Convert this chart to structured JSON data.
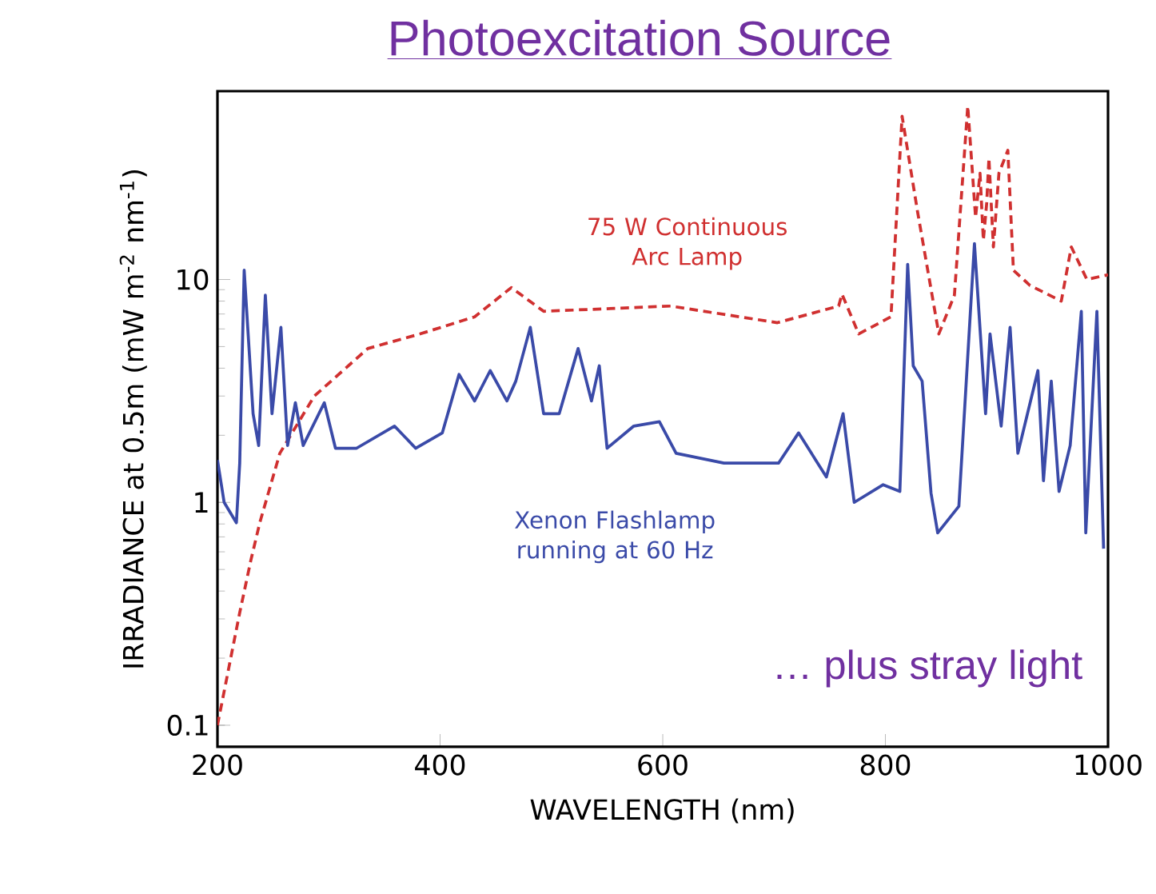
{
  "chart_data": {
    "type": "line",
    "title": "Photoexcitation Source",
    "xlabel": "WAVELENGTH (nm)",
    "ylabel": "IRRADIANCE at 0.5m (mW m$^{-2}$ nm$^{-1}$)",
    "log": "y",
    "grid": false,
    "marker": "none",
    "xlim": [
      200,
      1000
    ],
    "ylim": [
      0.08,
      70
    ],
    "xticks": [
      200,
      400,
      600,
      800,
      1000
    ],
    "yticks": [
      0.1,
      1,
      10
    ],
    "annotations": [
      "… plus stray light"
    ],
    "series": [
      {
        "name": "75 W Continuous Arc Lamp",
        "color": "#d03030",
        "line_style": "dashed",
        "x": [
          200,
          220,
          230,
          238,
          256,
          287,
          335,
          382,
          431,
          464,
          493,
          607,
          703,
          758,
          761,
          776,
          805,
          815,
          829,
          848,
          862,
          874,
          881,
          885,
          888,
          891,
          893,
          897,
          902,
          910,
          915,
          930,
          958,
          967,
          981,
          1000
        ],
        "values": [
          0.1,
          0.32,
          0.55,
          0.81,
          1.66,
          3.0,
          4.9,
          5.7,
          6.8,
          9.2,
          7.2,
          7.6,
          6.4,
          7.6,
          8.6,
          5.7,
          6.8,
          54,
          20,
          5.7,
          8.5,
          60,
          19,
          30,
          15,
          22,
          35,
          14,
          30,
          38,
          11,
          9.4,
          8,
          14,
          10,
          10.5
        ]
      },
      {
        "name": "Xenon Flashlamp running at 60 Hz",
        "color": "#3a4aa8",
        "line_style": "solid",
        "x": [
          200,
          206,
          217,
          220,
          224,
          232,
          237,
          243,
          249,
          257,
          263,
          270,
          277,
          296,
          306,
          325,
          359,
          378,
          402,
          417,
          431,
          445,
          460,
          468,
          481,
          493,
          507,
          524,
          536,
          543,
          550,
          574,
          597,
          612,
          655,
          704,
          722,
          747,
          762,
          772,
          798,
          813,
          820,
          825,
          833,
          841,
          847,
          866,
          880,
          890,
          894,
          904,
          912,
          919,
          937,
          942,
          949,
          956,
          966,
          976,
          980,
          990,
          996
        ],
        "values": [
          1.55,
          1.0,
          0.81,
          1.5,
          11.0,
          2.5,
          1.8,
          8.5,
          2.5,
          6.1,
          1.8,
          2.8,
          1.8,
          2.8,
          1.75,
          1.75,
          2.2,
          1.75,
          2.05,
          3.75,
          2.85,
          3.9,
          2.85,
          3.5,
          6.1,
          2.5,
          2.5,
          4.9,
          2.85,
          4.1,
          1.75,
          2.2,
          2.3,
          1.66,
          1.5,
          1.5,
          2.05,
          1.3,
          2.5,
          1.0,
          1.2,
          1.12,
          11.7,
          4.1,
          3.5,
          1.1,
          0.73,
          0.96,
          14.5,
          2.5,
          5.7,
          2.2,
          6.1,
          1.66,
          3.9,
          1.25,
          3.5,
          1.12,
          1.8,
          7.2,
          0.73,
          7.2,
          0.62
        ]
      }
    ]
  }
}
